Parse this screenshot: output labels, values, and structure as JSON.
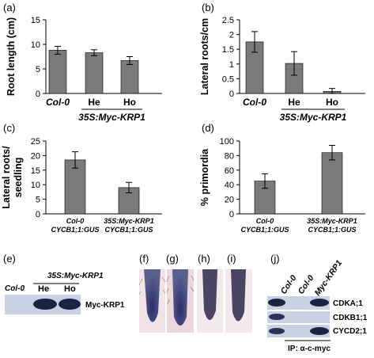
{
  "panel_labels": {
    "a": "(a)",
    "b": "(b)",
    "c": "(c)",
    "d": "(d)",
    "e": "(e)",
    "f": "(f)",
    "g": "(g)",
    "h": "(h)",
    "i": "(i)",
    "j": "(j)"
  },
  "chart_data": [
    {
      "id": "a",
      "type": "bar",
      "ylabel": "Root length (cm)",
      "ylim": [
        0,
        15
      ],
      "yticks": [
        0,
        5,
        10,
        15
      ],
      "categories": [
        "Col-0",
        "He",
        "Ho"
      ],
      "group_label": "35S:Myc-KRP1",
      "values": [
        8.8,
        8.3,
        6.7
      ],
      "errors": [
        0.8,
        0.6,
        0.8
      ]
    },
    {
      "id": "b",
      "type": "bar",
      "ylabel": "Lateral roots/cm",
      "ylim": [
        0,
        2.5
      ],
      "yticks": [
        0,
        0.5,
        1,
        1.5,
        2,
        2.5
      ],
      "categories": [
        "Col-0",
        "He",
        "Ho"
      ],
      "group_label": "35S:Myc-KRP1",
      "values": [
        1.75,
        1.02,
        0.07
      ],
      "errors": [
        0.35,
        0.4,
        0.1
      ]
    },
    {
      "id": "c",
      "type": "bar",
      "ylabel_lines": [
        "Lateral roots/",
        "seedling"
      ],
      "ylim": [
        0,
        25
      ],
      "yticks": [
        0,
        5,
        10,
        15,
        20,
        25
      ],
      "categories": [
        [
          "Col-0",
          "CYCB1;1:GUS"
        ],
        [
          "35S:Myc-KRP1",
          "CYCB1;1:GUS"
        ]
      ],
      "values": [
        18.5,
        9.0
      ],
      "errors": [
        2.8,
        1.8
      ]
    },
    {
      "id": "d",
      "type": "bar",
      "ylabel": "% primordia",
      "ylim": [
        0,
        100
      ],
      "yticks": [
        0,
        20,
        40,
        60,
        80,
        100
      ],
      "categories": [
        [
          "Col-0",
          "CYCB1;1:GUS"
        ],
        [
          "35S:Myc-KRP1",
          "CYCB1;1:GUS"
        ]
      ],
      "values": [
        45,
        84
      ],
      "errors": [
        10,
        10
      ]
    }
  ],
  "blot_e": {
    "group_label": "35S:Myc-KRP1",
    "lanes": [
      "Col-0",
      "He",
      "Ho"
    ],
    "band_label": "Myc-KRP1"
  },
  "blot_j": {
    "lanes": [
      "Col-0",
      "Col-0",
      "Myc-KRP1"
    ],
    "rows": [
      "CDKA;1",
      "CDKB1;1",
      "CYCD2;1"
    ],
    "ip_label": "IP: α-c-myc"
  },
  "colors": {
    "bar": "#7a7a7a",
    "blot_bg": "#c9d2e3",
    "band": "#1c2240",
    "root_bg": "#f1e3e6",
    "root_stain": "#3a3f75"
  }
}
